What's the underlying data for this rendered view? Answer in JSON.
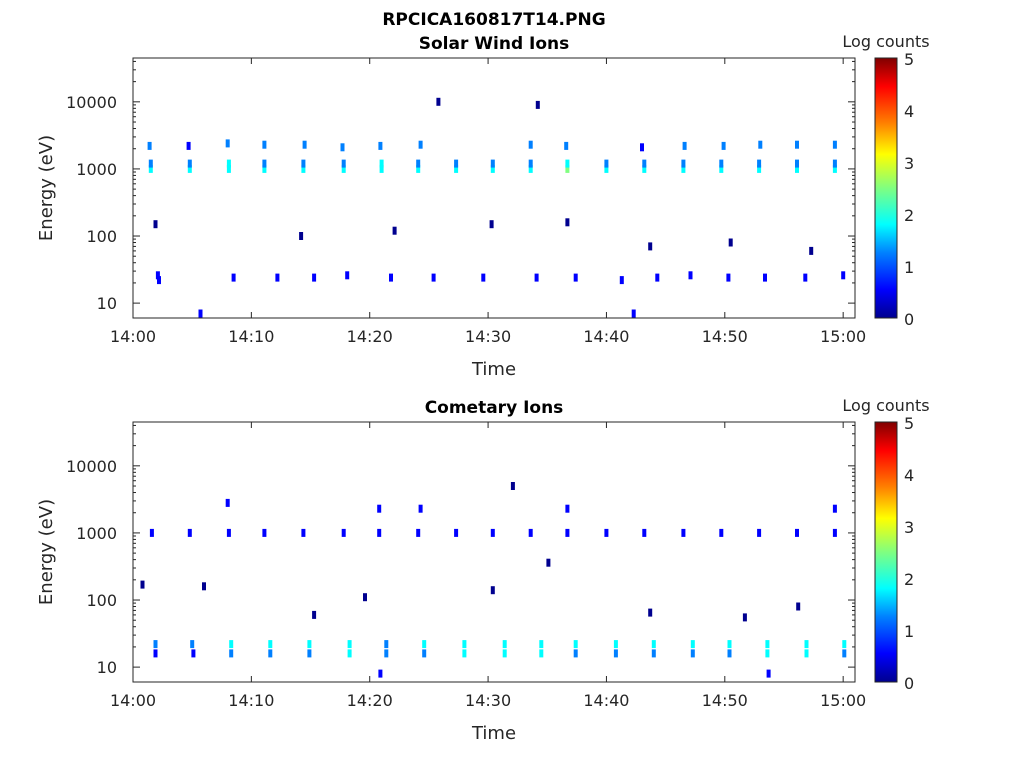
{
  "page_title": "RPCICA160817T14.PNG",
  "colorbar_label": "Log counts",
  "colorbar_ticks": [
    "0",
    "1",
    "2",
    "3",
    "4",
    "5"
  ],
  "colormap": [
    "#00008f",
    "#0000ff",
    "#0080ff",
    "#00ffff",
    "#80ff80",
    "#ffff00",
    "#ff8000",
    "#ff0000",
    "#800000"
  ],
  "chart_data": [
    {
      "type": "heatmap",
      "title": "Solar Wind Ions",
      "xlabel": "Time",
      "ylabel": "Energy (eV)",
      "x_ticks": [
        "14:00",
        "14:10",
        "14:20",
        "14:30",
        "14:40",
        "14:50",
        "15:00"
      ],
      "y_ticks": [
        "10",
        "100",
        "1000",
        "10000"
      ],
      "y_scale": "log",
      "xlim_minutes": [
        0,
        61
      ],
      "ylim_eV": [
        6,
        45000
      ],
      "clim_log_counts": [
        0,
        5
      ],
      "cells": [
        [
          1.5,
          1000,
          1.8
        ],
        [
          1.5,
          1200,
          1.5
        ],
        [
          1.4,
          2200,
          1.0
        ],
        [
          4.8,
          1000,
          1.9
        ],
        [
          4.8,
          1200,
          1.4
        ],
        [
          4.7,
          2200,
          0.9
        ],
        [
          8.1,
          1000,
          2.0
        ],
        [
          8.1,
          1200,
          1.6
        ],
        [
          8.0,
          2400,
          1.3
        ],
        [
          11.1,
          1000,
          1.8
        ],
        [
          11.1,
          1200,
          1.3
        ],
        [
          11.1,
          2300,
          1.1
        ],
        [
          14.4,
          1000,
          1.7
        ],
        [
          14.4,
          1200,
          1.2
        ],
        [
          14.5,
          2300,
          1.0
        ],
        [
          17.8,
          1000,
          2.0
        ],
        [
          17.8,
          1200,
          1.5
        ],
        [
          17.7,
          2100,
          1.0
        ],
        [
          21.0,
          1000,
          2.1
        ],
        [
          21.0,
          1200,
          1.6
        ],
        [
          20.9,
          2200,
          1.1
        ],
        [
          24.1,
          1000,
          1.7
        ],
        [
          24.1,
          1200,
          1.3
        ],
        [
          24.3,
          2300,
          1.2
        ],
        [
          27.3,
          1000,
          1.9
        ],
        [
          27.3,
          1200,
          1.4
        ],
        [
          30.4,
          1000,
          1.9
        ],
        [
          30.4,
          1200,
          1.4
        ],
        [
          33.6,
          1000,
          2.0
        ],
        [
          33.6,
          1200,
          1.5
        ],
        [
          33.6,
          2300,
          1.2
        ],
        [
          36.7,
          1000,
          2.2
        ],
        [
          36.7,
          1200,
          1.6
        ],
        [
          36.6,
          2200,
          1.1
        ],
        [
          40.0,
          1000,
          1.9
        ],
        [
          40.0,
          1200,
          1.4
        ],
        [
          43.2,
          1000,
          1.8
        ],
        [
          43.2,
          1200,
          1.3
        ],
        [
          43.0,
          2100,
          0.9
        ],
        [
          46.5,
          1000,
          1.8
        ],
        [
          46.5,
          1200,
          1.3
        ],
        [
          46.6,
          2200,
          1.0
        ],
        [
          49.7,
          1000,
          1.8
        ],
        [
          49.7,
          1200,
          1.3
        ],
        [
          49.9,
          2200,
          1.1
        ],
        [
          52.9,
          1000,
          1.9
        ],
        [
          52.9,
          1200,
          1.4
        ],
        [
          53.0,
          2300,
          1.1
        ],
        [
          56.1,
          1000,
          1.8
        ],
        [
          56.1,
          1200,
          1.3
        ],
        [
          56.1,
          2300,
          1.0
        ],
        [
          59.3,
          1000,
          1.8
        ],
        [
          59.3,
          1200,
          1.3
        ],
        [
          59.3,
          2300,
          1.1
        ],
        [
          2.1,
          26,
          0.6
        ],
        [
          2.2,
          22,
          0.5
        ],
        [
          8.5,
          24,
          0.5
        ],
        [
          12.2,
          24,
          0.5
        ],
        [
          15.3,
          24,
          0.5
        ],
        [
          18.1,
          26,
          0.6
        ],
        [
          21.8,
          24,
          0.5
        ],
        [
          25.4,
          24,
          0.5
        ],
        [
          29.6,
          24,
          0.5
        ],
        [
          34.1,
          24,
          0.5
        ],
        [
          37.4,
          24,
          0.5
        ],
        [
          41.3,
          22,
          0.6
        ],
        [
          44.3,
          24,
          0.5
        ],
        [
          47.1,
          26,
          0.6
        ],
        [
          50.3,
          24,
          0.5
        ],
        [
          53.4,
          24,
          0.5
        ],
        [
          56.8,
          24,
          0.5
        ],
        [
          60.0,
          26,
          0.6
        ],
        [
          5.7,
          7,
          0.4
        ],
        [
          42.3,
          7,
          0.4
        ],
        [
          25.8,
          10000,
          0.3
        ],
        [
          34.2,
          9000,
          0.3
        ],
        [
          1.9,
          150,
          0.3
        ],
        [
          14.2,
          100,
          0.3
        ],
        [
          22.1,
          120,
          0.3
        ],
        [
          30.3,
          150,
          0.3
        ],
        [
          36.7,
          160,
          0.3
        ],
        [
          43.7,
          70,
          0.3
        ],
        [
          50.5,
          80,
          0.3
        ],
        [
          57.3,
          60,
          0.3
        ]
      ]
    },
    {
      "type": "heatmap",
      "title": "Cometary Ions",
      "xlabel": "Time",
      "ylabel": "Energy (eV)",
      "x_ticks": [
        "14:00",
        "14:10",
        "14:20",
        "14:30",
        "14:40",
        "14:50",
        "15:00"
      ],
      "y_ticks": [
        "10",
        "100",
        "1000",
        "10000"
      ],
      "y_scale": "log",
      "xlim_minutes": [
        0,
        61
      ],
      "ylim_eV": [
        6,
        45000
      ],
      "clim_log_counts": [
        0,
        5
      ],
      "cells": [
        [
          1.6,
          1000,
          0.8
        ],
        [
          4.8,
          1000,
          0.7
        ],
        [
          8.1,
          1000,
          0.8
        ],
        [
          8.0,
          2800,
          0.7
        ],
        [
          11.1,
          1000,
          0.7
        ],
        [
          14.4,
          1000,
          0.7
        ],
        [
          17.8,
          1000,
          0.7
        ],
        [
          20.8,
          1000,
          0.7
        ],
        [
          20.8,
          2300,
          0.7
        ],
        [
          24.1,
          1000,
          0.6
        ],
        [
          24.3,
          2300,
          0.6
        ],
        [
          27.3,
          1000,
          0.6
        ],
        [
          30.4,
          1000,
          0.6
        ],
        [
          33.6,
          1000,
          0.6
        ],
        [
          36.7,
          1000,
          0.7
        ],
        [
          36.7,
          2300,
          0.8
        ],
        [
          40.0,
          1000,
          0.6
        ],
        [
          43.2,
          1000,
          0.6
        ],
        [
          46.5,
          1000,
          0.6
        ],
        [
          49.7,
          1000,
          0.6
        ],
        [
          52.9,
          1000,
          0.6
        ],
        [
          56.1,
          1000,
          0.6
        ],
        [
          59.3,
          1000,
          0.6
        ],
        [
          59.3,
          2300,
          0.6
        ],
        [
          1.9,
          22,
          1.2
        ],
        [
          1.9,
          16,
          0.9
        ],
        [
          5.0,
          22,
          1.1
        ],
        [
          5.1,
          16,
          0.8
        ],
        [
          8.3,
          22,
          1.7
        ],
        [
          8.3,
          16,
          1.5
        ],
        [
          11.6,
          22,
          1.6
        ],
        [
          11.6,
          16,
          1.2
        ],
        [
          14.9,
          22,
          1.8
        ],
        [
          14.9,
          16,
          1.5
        ],
        [
          18.3,
          22,
          2.0
        ],
        [
          18.3,
          16,
          1.6
        ],
        [
          21.4,
          22,
          1.5
        ],
        [
          21.4,
          16,
          1.2
        ],
        [
          24.6,
          22,
          1.8
        ],
        [
          24.6,
          16,
          1.4
        ],
        [
          28.0,
          22,
          1.9
        ],
        [
          28.0,
          16,
          1.6
        ],
        [
          31.4,
          22,
          2.1
        ],
        [
          31.4,
          16,
          1.8
        ],
        [
          34.5,
          22,
          1.9
        ],
        [
          34.5,
          16,
          1.7
        ],
        [
          37.4,
          22,
          1.6
        ],
        [
          37.4,
          16,
          1.2
        ],
        [
          40.8,
          22,
          1.7
        ],
        [
          40.8,
          16,
          1.4
        ],
        [
          44.0,
          22,
          1.6
        ],
        [
          44.0,
          16,
          1.2
        ],
        [
          47.3,
          22,
          1.8
        ],
        [
          47.3,
          16,
          1.4
        ],
        [
          50.4,
          22,
          1.6
        ],
        [
          50.4,
          16,
          1.2
        ],
        [
          53.6,
          22,
          1.8
        ],
        [
          53.6,
          16,
          1.9
        ],
        [
          56.9,
          22,
          1.9
        ],
        [
          56.9,
          16,
          1.6
        ],
        [
          60.1,
          22,
          1.8
        ],
        [
          60.1,
          16,
          1.5
        ],
        [
          20.9,
          8,
          0.5
        ],
        [
          53.7,
          8,
          0.5
        ],
        [
          32.1,
          5000,
          0.3
        ],
        [
          35.1,
          360,
          0.3
        ],
        [
          0.8,
          170,
          0.3
        ],
        [
          6.0,
          160,
          0.3
        ],
        [
          19.6,
          110,
          0.3
        ],
        [
          30.4,
          140,
          0.3
        ],
        [
          15.3,
          60,
          0.3
        ],
        [
          43.7,
          65,
          0.3
        ],
        [
          51.7,
          55,
          0.3
        ],
        [
          56.2,
          80,
          0.3
        ]
      ]
    }
  ]
}
